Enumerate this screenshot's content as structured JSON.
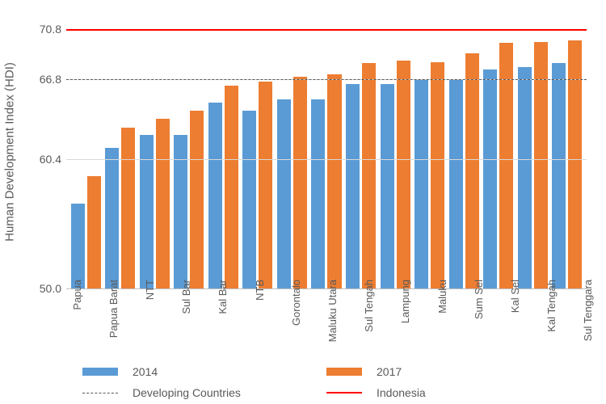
{
  "chart": {
    "type": "bar",
    "ylabel": "Human Development Index (HDI)",
    "y_min": 50.0,
    "y_max": 72.0,
    "ytick_values": [
      50.0,
      60.4,
      66.8,
      70.8
    ],
    "ytick_labels": [
      "50.0",
      "60.4",
      "66.8",
      "70.8"
    ],
    "grid_color": "#d9d9d9",
    "axis_color": "#bfbfbf",
    "tick_font_color": "#595959",
    "tick_fontsize": 14,
    "label_fontsize": 15,
    "background_color": "#ffffff",
    "series": [
      {
        "name": "2014",
        "color": "#5b9bd5"
      },
      {
        "name": "2017",
        "color": "#ed7d31"
      }
    ],
    "reference_lines": [
      {
        "name": "Developing Countries",
        "value": 66.8,
        "style": "dashed",
        "color": "#595959"
      },
      {
        "name": "Indonesia",
        "value": 70.8,
        "style": "solid",
        "color": "#ff0000"
      }
    ],
    "categories": [
      "Papua",
      "Papua Barat",
      "NTT",
      "Sul Bar",
      "Kal Bar",
      "NTB",
      "Gorontalo",
      "Maluku Utara",
      "Sul Tengah",
      "Lampung",
      "Maluku",
      "Sum Sel",
      "Kal Sel",
      "Kal Tengah",
      "Sul Tenggara"
    ],
    "values_2014": [
      56.8,
      61.3,
      62.3,
      62.3,
      64.9,
      64.3,
      65.2,
      65.2,
      66.4,
      66.4,
      66.8,
      66.8,
      67.6,
      67.8,
      68.1
    ],
    "values_2017": [
      59.0,
      62.9,
      63.6,
      64.3,
      66.3,
      66.6,
      67.0,
      67.2,
      68.1,
      68.3,
      68.2,
      68.9,
      69.7,
      69.8,
      69.9
    ],
    "bar_width": 0.42,
    "legend": {
      "items": [
        {
          "label": "2014",
          "kind": "bar",
          "color": "#5b9bd5"
        },
        {
          "label": "2017",
          "kind": "bar",
          "color": "#ed7d31"
        },
        {
          "label": "Developing Countries",
          "kind": "dashed",
          "color": "#595959"
        },
        {
          "label": "Indonesia",
          "kind": "solid",
          "color": "#ff0000"
        }
      ]
    }
  }
}
